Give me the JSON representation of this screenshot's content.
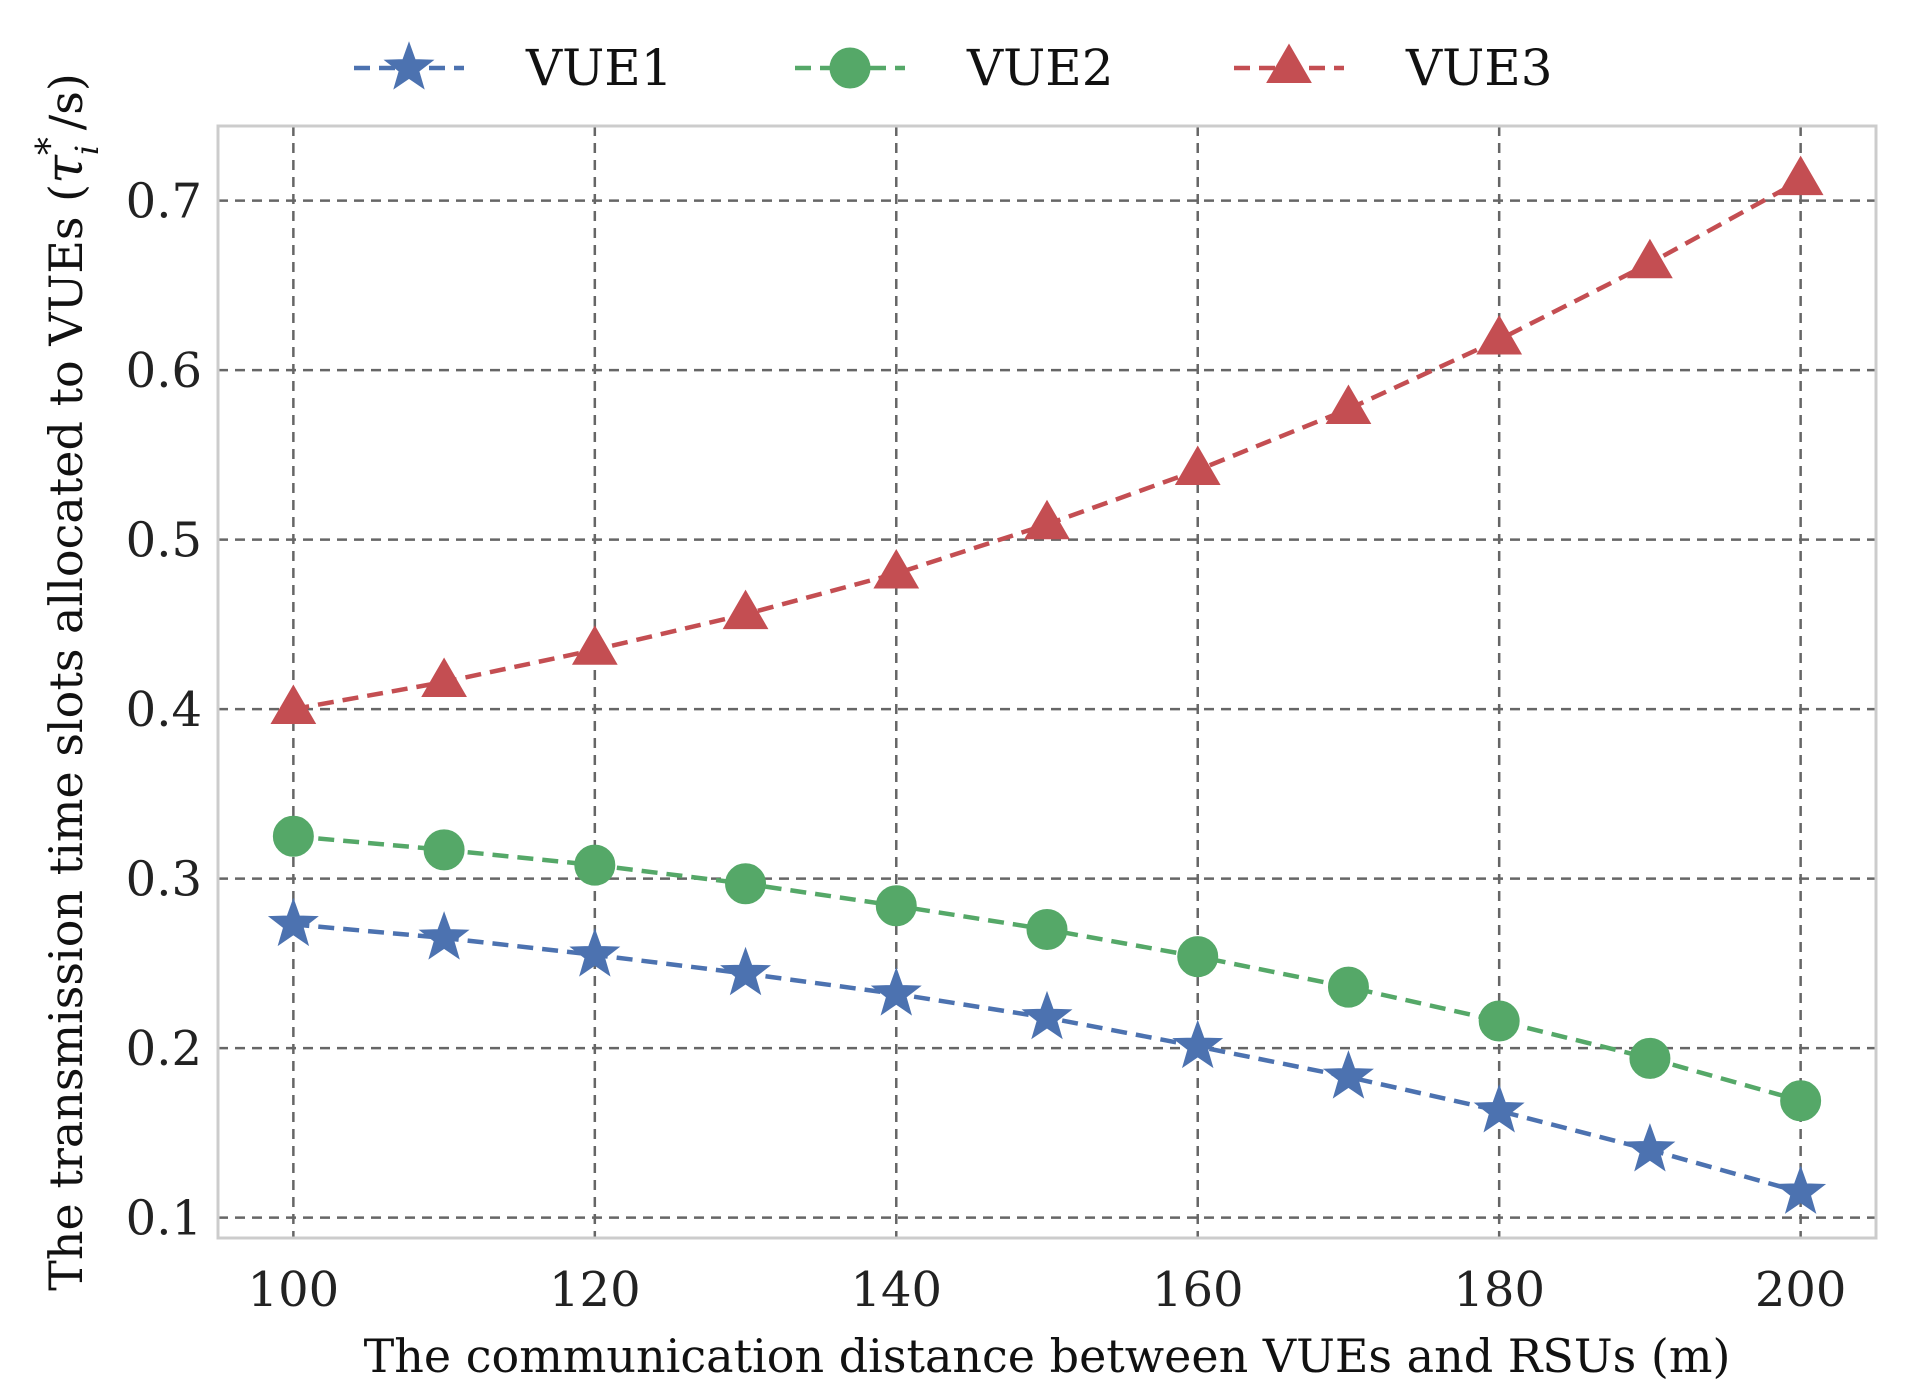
{
  "chart_data": {
    "type": "line",
    "title": "",
    "xlabel": "The communication distance between VUEs and RSUs (m)",
    "ylabel_main": "The transmission time slots allocated to VUEs (",
    "ylabel_symbol": "τ",
    "ylabel_sup": "*",
    "ylabel_sub": "i",
    "ylabel_tail": " /s)",
    "x": [
      100,
      110,
      120,
      130,
      140,
      150,
      160,
      170,
      180,
      190,
      200
    ],
    "xlim": [
      95,
      205
    ],
    "ylim": [
      0.088,
      0.744
    ],
    "xticks": [
      100,
      120,
      140,
      160,
      180,
      200
    ],
    "xtick_labels": [
      "100",
      "120",
      "140",
      "160",
      "180",
      "200"
    ],
    "yticks": [
      0.1,
      0.2,
      0.3,
      0.4,
      0.5,
      0.6,
      0.7
    ],
    "ytick_labels": [
      "0.1",
      "0.2",
      "0.3",
      "0.4",
      "0.5",
      "0.6",
      "0.7"
    ],
    "grid": true,
    "legend_position": "top-center",
    "series": [
      {
        "name": "VUE1",
        "marker": "star",
        "color": "#4c72b0",
        "values": [
          0.273,
          0.265,
          0.255,
          0.244,
          0.232,
          0.218,
          0.201,
          0.183,
          0.163,
          0.14,
          0.115
        ]
      },
      {
        "name": "VUE2",
        "marker": "circle",
        "color": "#55a868",
        "values": [
          0.325,
          0.317,
          0.308,
          0.297,
          0.284,
          0.27,
          0.254,
          0.236,
          0.216,
          0.194,
          0.169
        ]
      },
      {
        "name": "VUE3",
        "marker": "triangle",
        "color": "#c44e52",
        "values": [
          0.4,
          0.416,
          0.435,
          0.456,
          0.48,
          0.509,
          0.541,
          0.577,
          0.618,
          0.663,
          0.712
        ]
      }
    ]
  }
}
